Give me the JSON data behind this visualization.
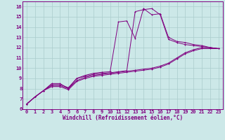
{
  "xlabel": "Windchill (Refroidissement éolien,°C)",
  "background_color": "#cce8e8",
  "line_color": "#800080",
  "grid_color": "#aacccc",
  "xlim": [
    -0.5,
    23.5
  ],
  "ylim": [
    6,
    16.5
  ],
  "xticks": [
    0,
    1,
    2,
    3,
    4,
    5,
    6,
    7,
    8,
    9,
    10,
    11,
    12,
    13,
    14,
    15,
    16,
    17,
    18,
    19,
    20,
    21,
    22,
    23
  ],
  "yticks": [
    6,
    7,
    8,
    9,
    10,
    11,
    12,
    13,
    14,
    15,
    16
  ],
  "curve1_x": [
    0,
    1,
    2,
    3,
    4,
    5,
    6,
    7,
    8,
    9,
    10,
    11,
    12,
    13,
    14,
    15,
    16,
    17,
    18,
    19,
    20,
    21,
    22,
    23
  ],
  "curve1_y": [
    6.5,
    7.2,
    7.8,
    8.5,
    8.5,
    8.0,
    9.0,
    9.3,
    9.5,
    9.6,
    9.65,
    14.5,
    14.6,
    12.9,
    15.8,
    15.2,
    15.3,
    13.0,
    12.6,
    12.5,
    12.3,
    12.2,
    12.0,
    11.9
  ],
  "curve2_x": [
    0,
    1,
    2,
    3,
    4,
    5,
    6,
    7,
    8,
    9,
    10,
    11,
    12,
    13,
    14,
    15,
    16,
    17,
    18,
    19,
    20,
    21,
    22,
    23
  ],
  "curve2_y": [
    6.5,
    7.2,
    7.8,
    8.4,
    8.4,
    8.1,
    9.0,
    9.2,
    9.4,
    9.5,
    9.55,
    9.65,
    9.75,
    15.5,
    15.7,
    15.8,
    15.2,
    12.8,
    12.5,
    12.3,
    12.2,
    12.1,
    12.0,
    11.9
  ],
  "curve3_x": [
    0,
    1,
    2,
    3,
    4,
    5,
    6,
    7,
    8,
    9,
    10,
    11,
    12,
    13,
    14,
    15,
    16,
    17,
    18,
    19,
    20,
    21,
    22,
    23
  ],
  "curve3_y": [
    6.5,
    7.2,
    7.8,
    8.3,
    8.3,
    8.0,
    8.8,
    9.1,
    9.3,
    9.4,
    9.5,
    9.6,
    9.7,
    9.8,
    9.9,
    10.0,
    10.2,
    10.5,
    11.0,
    11.5,
    11.8,
    12.0,
    12.0,
    11.9
  ],
  "curve4_x": [
    0,
    1,
    2,
    3,
    4,
    5,
    6,
    7,
    8,
    9,
    10,
    11,
    12,
    13,
    14,
    15,
    16,
    17,
    18,
    19,
    20,
    21,
    22,
    23
  ],
  "curve4_y": [
    6.5,
    7.2,
    7.8,
    8.2,
    8.2,
    7.9,
    8.7,
    9.0,
    9.2,
    9.3,
    9.4,
    9.5,
    9.6,
    9.7,
    9.8,
    9.9,
    10.1,
    10.4,
    10.9,
    11.4,
    11.7,
    11.9,
    11.9,
    11.9
  ],
  "tick_fontsize": 5.0,
  "xlabel_fontsize": 5.5,
  "lw": 0.7,
  "ms": 2.0
}
